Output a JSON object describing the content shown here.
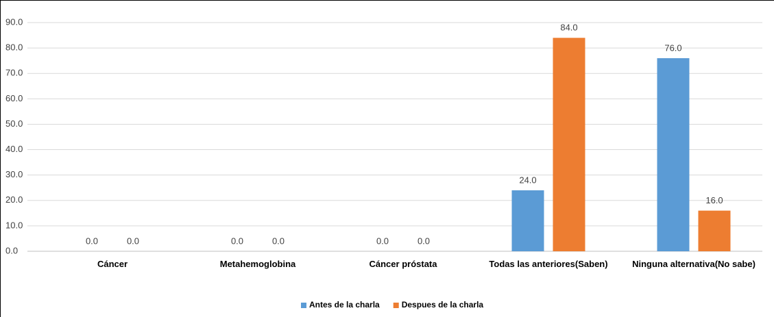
{
  "chart_data": {
    "type": "bar",
    "categories": [
      "Cáncer",
      "Metahemoglobina",
      "Cáncer próstata",
      "Todas las anteriores(Saben)",
      "Ninguna alternativa(No sabe)"
    ],
    "series": [
      {
        "name": "Antes de la charla",
        "color": "#5b9bd5",
        "values": [
          0,
          0,
          0,
          24,
          76
        ],
        "value_labels": [
          "0.0",
          "0.0",
          "0.0",
          "24.0",
          "76.0"
        ]
      },
      {
        "name": "Despues de la charla",
        "color": "#ed7d31",
        "values": [
          0,
          0,
          0,
          84,
          16
        ],
        "value_labels": [
          "0.0",
          "0.0",
          "0.0",
          "84.0",
          "16.0"
        ]
      }
    ],
    "ylim": [
      0,
      90
    ],
    "yticks": [
      {
        "value": 0,
        "label": "0.0"
      },
      {
        "value": 10,
        "label": "10.0"
      },
      {
        "value": 20,
        "label": "20.0"
      },
      {
        "value": 30,
        "label": "30.0"
      },
      {
        "value": 40,
        "label": "40.0"
      },
      {
        "value": 50,
        "label": "50.0"
      },
      {
        "value": 60,
        "label": "60.0"
      },
      {
        "value": 70,
        "label": "70.0"
      },
      {
        "value": 80,
        "label": "80.0"
      },
      {
        "value": 90,
        "label": "90.0"
      }
    ],
    "grid": true,
    "legend": "bottom"
  }
}
